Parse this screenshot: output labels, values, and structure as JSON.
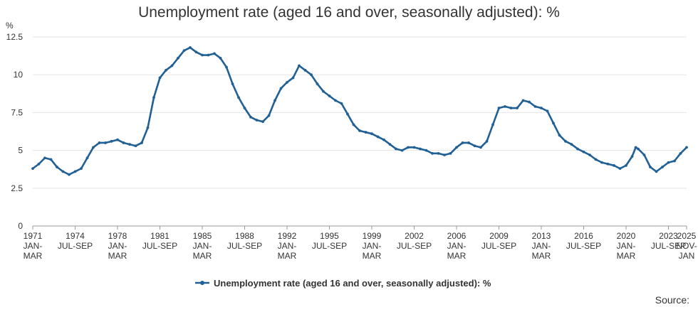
{
  "chart_data": {
    "type": "line",
    "title": "Unemployment rate (aged 16 and over, seasonally adjusted): %",
    "ylabel": "%",
    "ylim": [
      0,
      12.5
    ],
    "yticks": [
      "0",
      "2.5",
      "5",
      "7.5",
      "10",
      "12.5"
    ],
    "xlim": [
      1971.0,
      2025.0
    ],
    "xticks": [
      {
        "x": 1971.0,
        "lines": [
          "1971",
          "JAN-",
          "MAR"
        ]
      },
      {
        "x": 1974.5,
        "lines": [
          "1974",
          "JUL-SEP"
        ]
      },
      {
        "x": 1978.0,
        "lines": [
          "1978",
          "JAN-",
          "MAR"
        ]
      },
      {
        "x": 1981.5,
        "lines": [
          "1981",
          "JUL-SEP"
        ]
      },
      {
        "x": 1985.0,
        "lines": [
          "1985",
          "JAN-",
          "MAR"
        ]
      },
      {
        "x": 1988.5,
        "lines": [
          "1988",
          "JUL-SEP"
        ]
      },
      {
        "x": 1992.0,
        "lines": [
          "1992",
          "JAN-",
          "MAR"
        ]
      },
      {
        "x": 1995.5,
        "lines": [
          "1995",
          "JUL-SEP"
        ]
      },
      {
        "x": 1999.0,
        "lines": [
          "1999",
          "JAN-",
          "MAR"
        ]
      },
      {
        "x": 2002.5,
        "lines": [
          "2002",
          "JUL-SEP"
        ]
      },
      {
        "x": 2006.0,
        "lines": [
          "2006",
          "JAN-",
          "MAR"
        ]
      },
      {
        "x": 2009.5,
        "lines": [
          "2009",
          "JUL-SEP"
        ]
      },
      {
        "x": 2013.0,
        "lines": [
          "2013",
          "JAN-",
          "MAR"
        ]
      },
      {
        "x": 2016.5,
        "lines": [
          "2016",
          "JUL-SEP"
        ]
      },
      {
        "x": 2020.0,
        "lines": [
          "2020",
          "JAN-",
          "MAR"
        ]
      },
      {
        "x": 2023.5,
        "lines": [
          "2023",
          "JUL-SEP"
        ]
      },
      {
        "x": 2025.0,
        "lines": [
          "2025",
          "NOV-",
          "JAN"
        ]
      }
    ],
    "grid": true,
    "legend_position": "bottom-center",
    "series": [
      {
        "name": "Unemployment rate (aged 16 and over, seasonally adjusted): %",
        "color": "#206095",
        "points": [
          [
            1971.0,
            3.8
          ],
          [
            1971.5,
            4.1
          ],
          [
            1972.0,
            4.5
          ],
          [
            1972.5,
            4.4
          ],
          [
            1973.0,
            3.9
          ],
          [
            1973.5,
            3.6
          ],
          [
            1974.0,
            3.4
          ],
          [
            1974.5,
            3.6
          ],
          [
            1975.0,
            3.8
          ],
          [
            1975.5,
            4.5
          ],
          [
            1976.0,
            5.2
          ],
          [
            1976.5,
            5.5
          ],
          [
            1977.0,
            5.5
          ],
          [
            1977.5,
            5.6
          ],
          [
            1978.0,
            5.7
          ],
          [
            1978.5,
            5.5
          ],
          [
            1979.0,
            5.4
          ],
          [
            1979.5,
            5.3
          ],
          [
            1980.0,
            5.5
          ],
          [
            1980.5,
            6.5
          ],
          [
            1981.0,
            8.5
          ],
          [
            1981.5,
            9.8
          ],
          [
            1982.0,
            10.3
          ],
          [
            1982.5,
            10.6
          ],
          [
            1983.0,
            11.1
          ],
          [
            1983.5,
            11.6
          ],
          [
            1984.0,
            11.8
          ],
          [
            1984.5,
            11.5
          ],
          [
            1985.0,
            11.3
          ],
          [
            1985.5,
            11.3
          ],
          [
            1986.0,
            11.4
          ],
          [
            1986.5,
            11.1
          ],
          [
            1987.0,
            10.5
          ],
          [
            1987.5,
            9.4
          ],
          [
            1988.0,
            8.5
          ],
          [
            1988.5,
            7.8
          ],
          [
            1989.0,
            7.2
          ],
          [
            1989.5,
            7.0
          ],
          [
            1990.0,
            6.9
          ],
          [
            1990.5,
            7.3
          ],
          [
            1991.0,
            8.3
          ],
          [
            1991.5,
            9.1
          ],
          [
            1992.0,
            9.5
          ],
          [
            1992.5,
            9.8
          ],
          [
            1993.0,
            10.6
          ],
          [
            1993.5,
            10.3
          ],
          [
            1994.0,
            10.0
          ],
          [
            1994.5,
            9.4
          ],
          [
            1995.0,
            8.9
          ],
          [
            1995.5,
            8.6
          ],
          [
            1996.0,
            8.3
          ],
          [
            1996.5,
            8.1
          ],
          [
            1997.0,
            7.4
          ],
          [
            1997.5,
            6.7
          ],
          [
            1998.0,
            6.3
          ],
          [
            1998.5,
            6.2
          ],
          [
            1999.0,
            6.1
          ],
          [
            1999.5,
            5.9
          ],
          [
            2000.0,
            5.7
          ],
          [
            2000.5,
            5.4
          ],
          [
            2001.0,
            5.1
          ],
          [
            2001.5,
            5.0
          ],
          [
            2002.0,
            5.2
          ],
          [
            2002.5,
            5.2
          ],
          [
            2003.0,
            5.1
          ],
          [
            2003.5,
            5.0
          ],
          [
            2004.0,
            4.8
          ],
          [
            2004.5,
            4.8
          ],
          [
            2005.0,
            4.7
          ],
          [
            2005.5,
            4.8
          ],
          [
            2006.0,
            5.2
          ],
          [
            2006.5,
            5.5
          ],
          [
            2007.0,
            5.5
          ],
          [
            2007.5,
            5.3
          ],
          [
            2008.0,
            5.2
          ],
          [
            2008.5,
            5.6
          ],
          [
            2009.0,
            6.7
          ],
          [
            2009.5,
            7.8
          ],
          [
            2010.0,
            7.9
          ],
          [
            2010.5,
            7.8
          ],
          [
            2011.0,
            7.8
          ],
          [
            2011.5,
            8.3
          ],
          [
            2012.0,
            8.2
          ],
          [
            2012.5,
            7.9
          ],
          [
            2013.0,
            7.8
          ],
          [
            2013.5,
            7.6
          ],
          [
            2014.0,
            6.8
          ],
          [
            2014.5,
            6.0
          ],
          [
            2015.0,
            5.6
          ],
          [
            2015.5,
            5.4
          ],
          [
            2016.0,
            5.1
          ],
          [
            2016.5,
            4.9
          ],
          [
            2017.0,
            4.7
          ],
          [
            2017.5,
            4.4
          ],
          [
            2018.0,
            4.2
          ],
          [
            2018.5,
            4.1
          ],
          [
            2019.0,
            4.0
          ],
          [
            2019.5,
            3.8
          ],
          [
            2020.0,
            4.0
          ],
          [
            2020.5,
            4.6
          ],
          [
            2020.8,
            5.2
          ],
          [
            2021.0,
            5.1
          ],
          [
            2021.5,
            4.7
          ],
          [
            2022.0,
            3.9
          ],
          [
            2022.5,
            3.6
          ],
          [
            2023.0,
            3.9
          ],
          [
            2023.5,
            4.2
          ],
          [
            2024.0,
            4.3
          ],
          [
            2024.5,
            4.8
          ],
          [
            2025.0,
            5.2
          ]
        ]
      }
    ]
  },
  "footer": {
    "source_label": "Source:"
  }
}
